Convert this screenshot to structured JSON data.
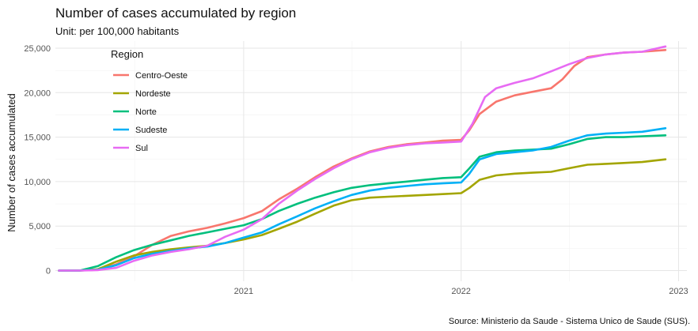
{
  "chart_data": {
    "type": "line",
    "title": "Number of cases accumulated by region",
    "subtitle": "Unit: per 100,000 habitants",
    "xlabel": "",
    "ylabel": "Number of cases accumulated",
    "caption": "Source: Ministerio da Saude - Sistema Unico de Saude (SUS).",
    "xlim": [
      "2020-02-20",
      "2023-01-15"
    ],
    "ylim": [
      -1200,
      25800
    ],
    "x_ticks": [
      {
        "date": "2021-01-01",
        "label": "2021"
      },
      {
        "date": "2022-01-01",
        "label": "2022"
      },
      {
        "date": "2023-01-01",
        "label": "2023"
      }
    ],
    "x_minor_ticks": [
      "2020-07-02",
      "2021-07-02",
      "2022-07-02"
    ],
    "y_ticks": [
      {
        "value": 0,
        "label": "0"
      },
      {
        "value": 5000,
        "label": "5,000"
      },
      {
        "value": 10000,
        "label": "10,000"
      },
      {
        "value": 15000,
        "label": "15,000"
      },
      {
        "value": 20000,
        "label": "20,000"
      },
      {
        "value": 25000,
        "label": "25,000"
      }
    ],
    "grid": true,
    "legend": {
      "title": "Region",
      "placement": "top-left"
    },
    "series": [
      {
        "name": "Centro-Oeste",
        "color": "#F8766D",
        "points": [
          [
            "2020-02-26",
            0
          ],
          [
            "2020-04-01",
            0
          ],
          [
            "2020-05-01",
            80
          ],
          [
            "2020-06-01",
            700
          ],
          [
            "2020-07-01",
            1600
          ],
          [
            "2020-08-01",
            2900
          ],
          [
            "2020-09-01",
            3900
          ],
          [
            "2020-10-01",
            4400
          ],
          [
            "2020-11-01",
            4800
          ],
          [
            "2020-12-01",
            5300
          ],
          [
            "2021-01-01",
            5900
          ],
          [
            "2021-02-01",
            6700
          ],
          [
            "2021-03-01",
            8000
          ],
          [
            "2021-04-01",
            9200
          ],
          [
            "2021-05-01",
            10500
          ],
          [
            "2021-06-01",
            11700
          ],
          [
            "2021-07-01",
            12600
          ],
          [
            "2021-08-01",
            13400
          ],
          [
            "2021-09-01",
            13900
          ],
          [
            "2021-10-01",
            14200
          ],
          [
            "2021-11-01",
            14400
          ],
          [
            "2021-12-01",
            14600
          ],
          [
            "2022-01-01",
            14700
          ],
          [
            "2022-01-15",
            15800
          ],
          [
            "2022-02-01",
            17600
          ],
          [
            "2022-03-01",
            19000
          ],
          [
            "2022-04-01",
            19700
          ],
          [
            "2022-05-01",
            20100
          ],
          [
            "2022-06-01",
            20500
          ],
          [
            "2022-06-20",
            21500
          ],
          [
            "2022-07-10",
            23000
          ],
          [
            "2022-08-01",
            24000
          ],
          [
            "2022-09-01",
            24300
          ],
          [
            "2022-10-01",
            24500
          ],
          [
            "2022-11-01",
            24600
          ],
          [
            "2022-12-10",
            24800
          ]
        ]
      },
      {
        "name": "Nordeste",
        "color": "#A3A500",
        "points": [
          [
            "2020-02-26",
            0
          ],
          [
            "2020-04-01",
            0
          ],
          [
            "2020-05-01",
            150
          ],
          [
            "2020-06-01",
            1000
          ],
          [
            "2020-07-01",
            1700
          ],
          [
            "2020-08-01",
            2100
          ],
          [
            "2020-09-01",
            2400
          ],
          [
            "2020-10-01",
            2600
          ],
          [
            "2020-11-01",
            2800
          ],
          [
            "2020-12-01",
            3100
          ],
          [
            "2021-01-01",
            3500
          ],
          [
            "2021-02-01",
            4000
          ],
          [
            "2021-03-01",
            4700
          ],
          [
            "2021-04-01",
            5500
          ],
          [
            "2021-05-01",
            6400
          ],
          [
            "2021-06-01",
            7300
          ],
          [
            "2021-07-01",
            7900
          ],
          [
            "2021-08-01",
            8200
          ],
          [
            "2021-09-01",
            8300
          ],
          [
            "2021-10-01",
            8400
          ],
          [
            "2021-11-01",
            8500
          ],
          [
            "2021-12-01",
            8600
          ],
          [
            "2022-01-01",
            8700
          ],
          [
            "2022-01-15",
            9300
          ],
          [
            "2022-02-01",
            10200
          ],
          [
            "2022-03-01",
            10700
          ],
          [
            "2022-04-01",
            10900
          ],
          [
            "2022-05-01",
            11000
          ],
          [
            "2022-06-01",
            11100
          ],
          [
            "2022-07-01",
            11500
          ],
          [
            "2022-08-01",
            11900
          ],
          [
            "2022-09-01",
            12000
          ],
          [
            "2022-10-01",
            12100
          ],
          [
            "2022-11-01",
            12200
          ],
          [
            "2022-12-10",
            12500
          ]
        ]
      },
      {
        "name": "Norte",
        "color": "#00BF7D",
        "points": [
          [
            "2020-02-26",
            0
          ],
          [
            "2020-04-01",
            0
          ],
          [
            "2020-05-01",
            500
          ],
          [
            "2020-06-01",
            1500
          ],
          [
            "2020-07-01",
            2300
          ],
          [
            "2020-08-01",
            2900
          ],
          [
            "2020-09-01",
            3400
          ],
          [
            "2020-10-01",
            3900
          ],
          [
            "2020-11-01",
            4300
          ],
          [
            "2020-12-01",
            4700
          ],
          [
            "2021-01-01",
            5100
          ],
          [
            "2021-02-01",
            5800
          ],
          [
            "2021-03-01",
            6700
          ],
          [
            "2021-04-01",
            7500
          ],
          [
            "2021-05-01",
            8200
          ],
          [
            "2021-06-01",
            8800
          ],
          [
            "2021-07-01",
            9300
          ],
          [
            "2021-08-01",
            9600
          ],
          [
            "2021-09-01",
            9800
          ],
          [
            "2021-10-01",
            10000
          ],
          [
            "2021-11-01",
            10200
          ],
          [
            "2021-12-01",
            10400
          ],
          [
            "2022-01-01",
            10500
          ],
          [
            "2022-01-15",
            11500
          ],
          [
            "2022-02-01",
            12800
          ],
          [
            "2022-03-01",
            13300
          ],
          [
            "2022-04-01",
            13500
          ],
          [
            "2022-05-01",
            13600
          ],
          [
            "2022-06-01",
            13700
          ],
          [
            "2022-07-01",
            14200
          ],
          [
            "2022-08-01",
            14800
          ],
          [
            "2022-09-01",
            15000
          ],
          [
            "2022-10-01",
            15000
          ],
          [
            "2022-11-01",
            15100
          ],
          [
            "2022-12-10",
            15200
          ]
        ]
      },
      {
        "name": "Sudeste",
        "color": "#00B0F6",
        "points": [
          [
            "2020-02-26",
            0
          ],
          [
            "2020-04-01",
            0
          ],
          [
            "2020-05-01",
            100
          ],
          [
            "2020-06-01",
            600
          ],
          [
            "2020-07-01",
            1400
          ],
          [
            "2020-08-01",
            1900
          ],
          [
            "2020-09-01",
            2200
          ],
          [
            "2020-10-01",
            2500
          ],
          [
            "2020-11-01",
            2700
          ],
          [
            "2020-12-01",
            3100
          ],
          [
            "2021-01-01",
            3700
          ],
          [
            "2021-02-01",
            4300
          ],
          [
            "2021-03-01",
            5200
          ],
          [
            "2021-04-01",
            6100
          ],
          [
            "2021-05-01",
            7000
          ],
          [
            "2021-06-01",
            7800
          ],
          [
            "2021-07-01",
            8500
          ],
          [
            "2021-08-01",
            9000
          ],
          [
            "2021-09-01",
            9300
          ],
          [
            "2021-10-01",
            9500
          ],
          [
            "2021-11-01",
            9700
          ],
          [
            "2021-12-01",
            9800
          ],
          [
            "2022-01-01",
            9900
          ],
          [
            "2022-01-15",
            10900
          ],
          [
            "2022-02-01",
            12500
          ],
          [
            "2022-03-01",
            13100
          ],
          [
            "2022-04-01",
            13300
          ],
          [
            "2022-05-01",
            13500
          ],
          [
            "2022-06-01",
            13900
          ],
          [
            "2022-07-01",
            14600
          ],
          [
            "2022-08-01",
            15200
          ],
          [
            "2022-09-01",
            15400
          ],
          [
            "2022-10-01",
            15500
          ],
          [
            "2022-11-01",
            15600
          ],
          [
            "2022-12-10",
            16000
          ]
        ]
      },
      {
        "name": "Sul",
        "color": "#E76BF3",
        "points": [
          [
            "2020-02-26",
            0
          ],
          [
            "2020-04-01",
            0
          ],
          [
            "2020-05-01",
            50
          ],
          [
            "2020-06-01",
            300
          ],
          [
            "2020-07-01",
            1100
          ],
          [
            "2020-08-01",
            1700
          ],
          [
            "2020-09-01",
            2100
          ],
          [
            "2020-10-01",
            2400
          ],
          [
            "2020-11-01",
            2800
          ],
          [
            "2020-12-01",
            3800
          ],
          [
            "2021-01-01",
            4600
          ],
          [
            "2021-02-01",
            5800
          ],
          [
            "2021-03-01",
            7500
          ],
          [
            "2021-04-01",
            9000
          ],
          [
            "2021-05-01",
            10300
          ],
          [
            "2021-06-01",
            11500
          ],
          [
            "2021-07-01",
            12500
          ],
          [
            "2021-08-01",
            13300
          ],
          [
            "2021-09-01",
            13800
          ],
          [
            "2021-10-01",
            14100
          ],
          [
            "2021-11-01",
            14300
          ],
          [
            "2021-12-01",
            14400
          ],
          [
            "2022-01-01",
            14500
          ],
          [
            "2022-01-20",
            16500
          ],
          [
            "2022-02-10",
            19500
          ],
          [
            "2022-03-01",
            20500
          ],
          [
            "2022-04-01",
            21100
          ],
          [
            "2022-05-01",
            21600
          ],
          [
            "2022-06-01",
            22400
          ],
          [
            "2022-07-01",
            23200
          ],
          [
            "2022-08-01",
            23900
          ],
          [
            "2022-09-01",
            24300
          ],
          [
            "2022-10-01",
            24500
          ],
          [
            "2022-11-01",
            24600
          ],
          [
            "2022-12-10",
            25200
          ]
        ]
      }
    ]
  }
}
